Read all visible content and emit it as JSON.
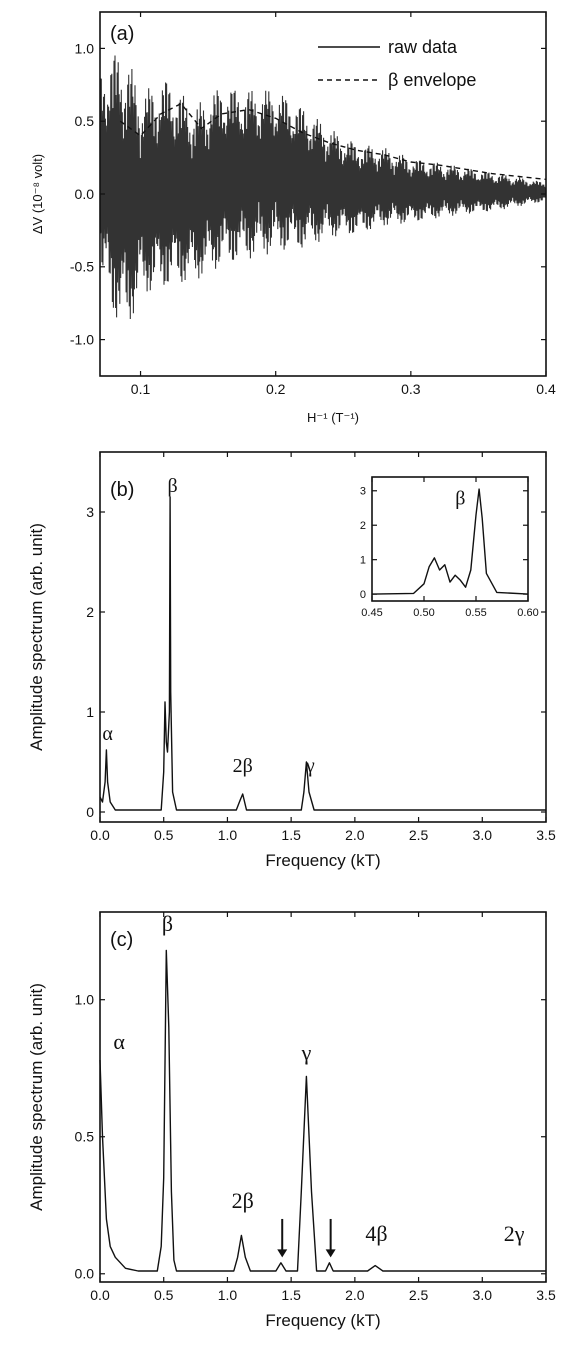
{
  "chart_data": [
    {
      "panel_label": "(a)",
      "type": "line",
      "xlabel": "H⁻¹ (T⁻¹)",
      "ylabel": "ΔV (10⁻⁸ volt)",
      "xlim": [
        0.07,
        0.4
      ],
      "ylim": [
        -1.25,
        1.25
      ],
      "xticks": [
        0.1,
        0.2,
        0.3,
        0.4
      ],
      "xtick_labels": [
        "0.1",
        "0.2",
        "0.3",
        "0.4"
      ],
      "yticks": [
        -1.0,
        -0.5,
        0.0,
        0.5,
        1.0
      ],
      "ytick_labels": [
        "-1.0",
        "-0.5",
        "0.0",
        "0.5",
        "1.0"
      ],
      "legend": [
        "raw data",
        "β envelope"
      ],
      "legend_position": "top-right",
      "grid": false,
      "series": [
        {
          "name": "raw data",
          "style": "solid",
          "x": [
            0.07,
            0.08,
            0.09,
            0.1,
            0.12,
            0.14,
            0.16,
            0.18,
            0.2,
            0.22,
            0.24,
            0.26,
            0.28,
            0.3,
            0.33,
            0.36,
            0.4
          ],
          "ymax": [
            0.85,
            0.98,
            0.95,
            0.7,
            0.8,
            0.6,
            0.75,
            0.72,
            0.72,
            0.6,
            0.45,
            0.35,
            0.32,
            0.25,
            0.2,
            0.15,
            0.08
          ],
          "ymin": [
            -0.55,
            -0.85,
            -0.95,
            -0.7,
            -0.65,
            -0.6,
            -0.5,
            -0.45,
            -0.4,
            -0.38,
            -0.3,
            -0.28,
            -0.22,
            -0.2,
            -0.15,
            -0.12,
            -0.05
          ]
        },
        {
          "name": "β envelope",
          "style": "dashed",
          "x": [
            0.085,
            0.1,
            0.115,
            0.13,
            0.145,
            0.16,
            0.18,
            0.2,
            0.22,
            0.24,
            0.26,
            0.28,
            0.3,
            0.32,
            0.34,
            0.36,
            0.38,
            0.4
          ],
          "y": [
            0.5,
            0.4,
            0.55,
            0.62,
            0.45,
            0.55,
            0.58,
            0.52,
            0.42,
            0.35,
            0.3,
            0.27,
            0.22,
            0.2,
            0.17,
            0.14,
            0.12,
            0.1
          ]
        }
      ]
    },
    {
      "panel_label": "(b)",
      "type": "line",
      "xlabel": "Frequency (kT)",
      "ylabel": "Amplitude spectrum (arb. unit)",
      "xlim": [
        0.0,
        3.5
      ],
      "ylim": [
        -0.1,
        3.6
      ],
      "xticks": [
        0.0,
        0.5,
        1.0,
        1.5,
        2.0,
        2.5,
        3.0,
        3.5
      ],
      "xtick_labels": [
        "0.0",
        "0.5",
        "1.0",
        "1.5",
        "2.0",
        "2.5",
        "3.0",
        "3.5"
      ],
      "yticks": [
        0,
        1,
        2,
        3
      ],
      "ytick_labels": [
        "0",
        "1",
        "2",
        "3"
      ],
      "grid": false,
      "series": [
        {
          "x": [
            0.0,
            0.02,
            0.04,
            0.05,
            0.06,
            0.08,
            0.12,
            0.48,
            0.5,
            0.51,
            0.52,
            0.53,
            0.545,
            0.55,
            0.555,
            0.57,
            0.6,
            1.07,
            1.1,
            1.12,
            1.15,
            1.58,
            1.6,
            1.62,
            1.64,
            1.68,
            3.5
          ],
          "y": [
            0.15,
            0.1,
            0.3,
            0.62,
            0.3,
            0.1,
            0.02,
            0.02,
            0.4,
            1.1,
            0.7,
            0.6,
            1.0,
            3.15,
            1.2,
            0.2,
            0.02,
            0.02,
            0.12,
            0.18,
            0.02,
            0.02,
            0.2,
            0.5,
            0.2,
            0.02,
            0.02
          ]
        }
      ],
      "annotations": [
        {
          "text": "α",
          "x": 0.06,
          "y": 0.72
        },
        {
          "text": "β",
          "x": 0.57,
          "y": 3.2
        },
        {
          "text": "2β",
          "x": 1.12,
          "y": 0.4
        },
        {
          "text": "γ",
          "x": 1.65,
          "y": 0.4
        }
      ],
      "inset": {
        "type": "line",
        "xlim": [
          0.45,
          0.6
        ],
        "ylim": [
          -0.2,
          3.4
        ],
        "xticks": [
          0.45,
          0.5,
          0.55,
          0.6
        ],
        "xtick_labels": [
          "0.45",
          "0.50",
          "0.55",
          "0.60"
        ],
        "yticks": [
          0,
          1,
          2,
          3
        ],
        "ytick_labels": [
          "0",
          "1",
          "2",
          "3"
        ],
        "x": [
          0.45,
          0.49,
          0.5,
          0.505,
          0.51,
          0.515,
          0.52,
          0.525,
          0.53,
          0.535,
          0.54,
          0.545,
          0.55,
          0.553,
          0.556,
          0.56,
          0.57,
          0.6
        ],
        "y": [
          0.0,
          0.02,
          0.3,
          0.8,
          1.05,
          0.7,
          0.85,
          0.35,
          0.55,
          0.4,
          0.2,
          0.7,
          2.3,
          3.05,
          2.2,
          0.6,
          0.05,
          0.0
        ],
        "annotations": [
          {
            "text": "β",
            "x": 0.535,
            "y": 2.6
          }
        ]
      }
    },
    {
      "panel_label": "(c)",
      "type": "line",
      "xlabel": "Frequency (kT)",
      "ylabel": "Amplitude spectrum (arb. unit)",
      "xlim": [
        0.0,
        3.5
      ],
      "ylim": [
        -0.03,
        1.32
      ],
      "xticks": [
        0.0,
        0.5,
        1.0,
        1.5,
        2.0,
        2.5,
        3.0,
        3.5
      ],
      "xtick_labels": [
        "0.0",
        "0.5",
        "1.0",
        "1.5",
        "2.0",
        "2.5",
        "3.0",
        "3.5"
      ],
      "yticks": [
        0.0,
        0.5,
        1.0
      ],
      "ytick_labels": [
        "0.0",
        "0.5",
        "1.0"
      ],
      "grid": false,
      "series": [
        {
          "x": [
            0.0,
            0.02,
            0.05,
            0.08,
            0.12,
            0.2,
            0.3,
            0.45,
            0.48,
            0.5,
            0.52,
            0.54,
            0.56,
            0.58,
            0.6,
            0.65,
            1.05,
            1.08,
            1.11,
            1.14,
            1.18,
            1.38,
            1.42,
            1.46,
            1.55,
            1.58,
            1.62,
            1.66,
            1.7,
            1.77,
            1.8,
            1.83,
            1.88,
            2.1,
            2.16,
            2.22,
            3.5
          ],
          "y": [
            0.78,
            0.5,
            0.2,
            0.1,
            0.06,
            0.02,
            0.01,
            0.01,
            0.1,
            0.35,
            1.18,
            0.9,
            0.3,
            0.05,
            0.01,
            0.01,
            0.01,
            0.06,
            0.14,
            0.06,
            0.01,
            0.01,
            0.04,
            0.01,
            0.01,
            0.3,
            0.72,
            0.3,
            0.01,
            0.01,
            0.04,
            0.01,
            0.01,
            0.01,
            0.03,
            0.01,
            0.01
          ]
        }
      ],
      "annotations": [
        {
          "text": "α",
          "x": 0.15,
          "y": 0.82
        },
        {
          "text": "β",
          "x": 0.53,
          "y": 1.25
        },
        {
          "text": "2β",
          "x": 1.12,
          "y": 0.24
        },
        {
          "text": "γ",
          "x": 1.62,
          "y": 0.78
        },
        {
          "text": "4β",
          "x": 2.17,
          "y": 0.12
        },
        {
          "text": "2γ",
          "x": 3.25,
          "y": 0.12
        }
      ],
      "arrows": [
        {
          "x": 1.43,
          "y_from": 0.2,
          "y_to": 0.06
        },
        {
          "x": 1.81,
          "y_from": 0.2,
          "y_to": 0.06
        }
      ]
    }
  ]
}
